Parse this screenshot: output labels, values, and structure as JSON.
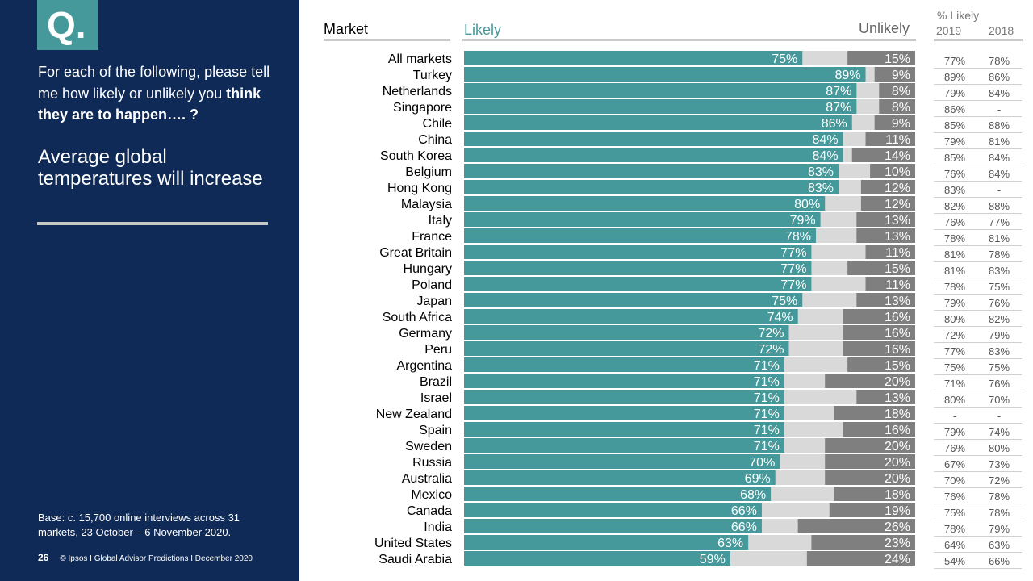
{
  "left_panel": {
    "q_letter": "Q.",
    "question_regular": "For each of the following, please tell me how likely or unlikely you ",
    "question_bold": "think they are to happen…. ?",
    "topic": "Average global temperatures will increase",
    "base_note": "Base: c. 15,700 online interviews across 31 markets,  23 October – 6 November 2020.",
    "page_number": "26",
    "footer_text": "© Ipsos I Global Advisor Predictions I December 2020"
  },
  "headers": {
    "market": "Market",
    "likely": "Likely",
    "unlikely": "Unlikely",
    "pct_likely": "% Likely",
    "year_2019": "2019",
    "year_2018": "2018"
  },
  "colors": {
    "panel_bg": "#0f2a56",
    "likely": "#46999a",
    "neutral": "#d9d9d9",
    "unlikely": "#7f7f7f",
    "accent": "#46999a"
  },
  "chart_data": {
    "type": "bar",
    "orientation": "horizontal",
    "stacked": true,
    "unit": "%",
    "xlim": [
      0,
      100
    ],
    "categories": [
      "All markets",
      "Turkey",
      "Netherlands",
      "Singapore",
      "Chile",
      "China",
      "South Korea",
      "Belgium",
      "Hong Kong",
      "Malaysia",
      "Italy",
      "France",
      "Great Britain",
      "Hungary",
      "Poland",
      "Japan",
      "South Africa",
      "Germany",
      "Peru",
      "Argentina",
      "Brazil",
      "Israel",
      "New Zealand",
      "Spain",
      "Sweden",
      "Russia",
      "Australia",
      "Mexico",
      "Canada",
      "India",
      "United States",
      "Saudi Arabia"
    ],
    "series": [
      {
        "name": "Likely",
        "values": [
          75,
          89,
          87,
          87,
          86,
          84,
          84,
          83,
          83,
          80,
          79,
          78,
          77,
          77,
          77,
          75,
          74,
          72,
          72,
          71,
          71,
          71,
          71,
          71,
          71,
          70,
          69,
          68,
          66,
          66,
          63,
          59
        ]
      },
      {
        "name": "Unlikely",
        "values": [
          15,
          9,
          8,
          8,
          9,
          11,
          14,
          10,
          12,
          12,
          13,
          13,
          11,
          15,
          11,
          13,
          16,
          16,
          16,
          15,
          20,
          13,
          18,
          16,
          20,
          20,
          20,
          18,
          19,
          26,
          23,
          24
        ]
      }
    ],
    "likely_2019": [
      "77%",
      "89%",
      "79%",
      "86%",
      "85%",
      "79%",
      "85%",
      "76%",
      "83%",
      "82%",
      "76%",
      "78%",
      "81%",
      "81%",
      "78%",
      "79%",
      "80%",
      "72%",
      "77%",
      "75%",
      "71%",
      "80%",
      "-",
      "79%",
      "76%",
      "67%",
      "70%",
      "76%",
      "75%",
      "78%",
      "64%",
      "54%"
    ],
    "likely_2018": [
      "78%",
      "86%",
      "84%",
      "-",
      "88%",
      "81%",
      "84%",
      "84%",
      "-",
      "88%",
      "77%",
      "81%",
      "78%",
      "83%",
      "75%",
      "76%",
      "82%",
      "79%",
      "83%",
      "75%",
      "76%",
      "70%",
      "-",
      "74%",
      "80%",
      "73%",
      "72%",
      "78%",
      "78%",
      "79%",
      "63%",
      "66%"
    ]
  }
}
